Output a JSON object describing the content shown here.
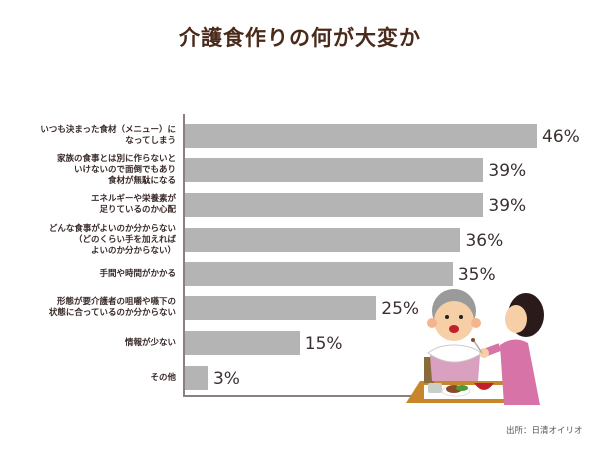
{
  "title": "介護食作りの何が大変か",
  "source": "出所：日清オイリオ",
  "chart_data": {
    "type": "bar",
    "orientation": "horizontal",
    "title": "介護食作りの何が大変か",
    "categories": [
      "いつも決まった食材（メニュー）になってしまう",
      "家族の食事とは別に作らないといけないので面倒でもあり食材が無駄になる",
      "エネルギーや栄養素が足りているのか心配",
      "どんな食事がよいのか分からない（どのくらい手を加えればよいのか分からない）",
      "手間や時間がかかる",
      "形態が要介護者の咀嚼や嚥下の状態に合っているのか分からない",
      "情報が少ない",
      "その他"
    ],
    "values": [
      46,
      39,
      39,
      36,
      35,
      25,
      15,
      3
    ],
    "value_labels": [
      "46%",
      "39%",
      "39%",
      "36%",
      "35%",
      "25%",
      "15%",
      "3%"
    ],
    "xlabel": "",
    "ylabel": "",
    "xlim": [
      0,
      46
    ],
    "grid": false,
    "legend": null,
    "bar_color": "#b4b4b4",
    "source": "出所：日清オイリオ"
  },
  "rows": [
    {
      "lines": [
        "いつも決まった食材（メニュー）に",
        "なってしまう"
      ],
      "value": 46,
      "label": "46%"
    },
    {
      "lines": [
        "家族の食事とは別に作らないと",
        "いけないので面倒でもあり",
        "食材が無駄になる"
      ],
      "value": 39,
      "label": "39%"
    },
    {
      "lines": [
        "エネルギーや栄養素が",
        "足りているのか心配"
      ],
      "value": 39,
      "label": "39%"
    },
    {
      "lines": [
        "どんな食事がよいのか分からない",
        "（どのくらい手を加えれば",
        "よいのか分からない）"
      ],
      "value": 36,
      "label": "36%"
    },
    {
      "lines": [
        "手間や時間がかかる"
      ],
      "value": 35,
      "label": "35%"
    },
    {
      "lines": [
        "形態が要介護者の咀嚼や嚥下の",
        "状態に合っているのか分からない"
      ],
      "value": 25,
      "label": "25%"
    },
    {
      "lines": [
        "情報が少ない"
      ],
      "value": 15,
      "label": "15%"
    },
    {
      "lines": [
        "その他"
      ],
      "value": 3,
      "label": "3%"
    }
  ],
  "colors": {
    "title": "#4a2a1a",
    "bar": "#b4b4b4",
    "axis": "#8a8080",
    "text": "#3a3030"
  }
}
